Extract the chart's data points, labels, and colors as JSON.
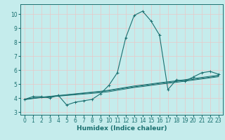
{
  "xlabel": "Humidex (Indice chaleur)",
  "bg_color": "#c5ecec",
  "grid_color_major": "#e8c8c8",
  "grid_color_minor": "#e8c8c8",
  "line_color": "#1a7070",
  "spine_color": "#1a7070",
  "x_data": [
    0,
    1,
    2,
    3,
    4,
    5,
    6,
    7,
    8,
    9,
    10,
    11,
    12,
    13,
    14,
    15,
    16,
    17,
    18,
    19,
    20,
    21,
    22,
    23
  ],
  "y_main": [
    3.9,
    4.1,
    4.1,
    4.0,
    4.2,
    3.5,
    3.7,
    3.8,
    3.9,
    4.3,
    4.9,
    5.8,
    8.3,
    9.9,
    10.2,
    9.5,
    8.5,
    4.6,
    5.3,
    5.2,
    5.5,
    5.8,
    5.9,
    5.7
  ],
  "y_line2": [
    3.9,
    4.0,
    4.02,
    4.08,
    4.13,
    4.18,
    4.23,
    4.28,
    4.33,
    4.38,
    4.45,
    4.55,
    4.65,
    4.75,
    4.82,
    4.9,
    4.98,
    5.05,
    5.12,
    5.2,
    5.28,
    5.36,
    5.44,
    5.52
  ],
  "y_line3": [
    3.9,
    3.98,
    4.06,
    4.12,
    4.18,
    4.24,
    4.3,
    4.36,
    4.42,
    4.48,
    4.56,
    4.66,
    4.76,
    4.86,
    4.93,
    5.01,
    5.09,
    5.16,
    5.23,
    5.31,
    5.39,
    5.47,
    5.55,
    5.63
  ],
  "y_line4": [
    3.88,
    3.96,
    4.04,
    4.1,
    4.16,
    4.21,
    4.27,
    4.33,
    4.39,
    4.45,
    4.52,
    4.62,
    4.71,
    4.8,
    4.88,
    4.96,
    5.04,
    5.11,
    5.18,
    5.26,
    5.33,
    5.41,
    5.49,
    5.57
  ],
  "xlim": [
    -0.5,
    23.5
  ],
  "ylim": [
    2.8,
    10.7
  ],
  "yticks": [
    3,
    4,
    5,
    6,
    7,
    8,
    9,
    10
  ],
  "xticks": [
    0,
    1,
    2,
    3,
    4,
    5,
    6,
    7,
    8,
    9,
    10,
    11,
    12,
    13,
    14,
    15,
    16,
    17,
    18,
    19,
    20,
    21,
    22,
    23
  ],
  "tick_font_size": 5.5,
  "label_font_size": 6.5
}
